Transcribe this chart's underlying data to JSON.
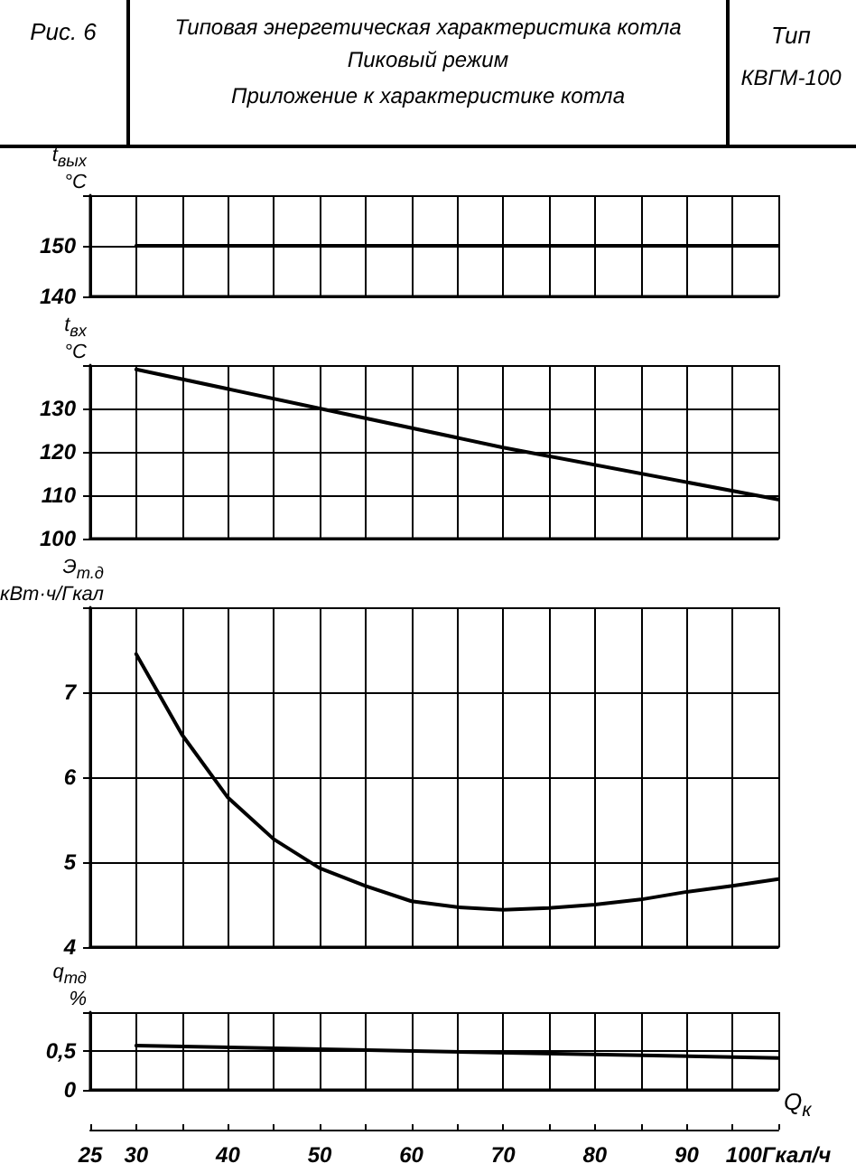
{
  "chart_data": [
    {
      "type": "line",
      "title": "Типовая энергетическая характеристика котла",
      "subtitle": "Пиковый режим",
      "annotations": [
        "Рис. 6",
        "Приложение к характеристике котла",
        "Тип",
        "КВГМ-100"
      ],
      "ylabel": "t$_{вых}$ °C",
      "x": [
        30,
        100
      ],
      "series": [
        {
          "color": "#000000",
          "values": [
            150,
            150
          ]
        }
      ],
      "xlim": [
        25,
        100
      ],
      "xticks": [
        25,
        30,
        {
          "value": 35,
          "label": null
        },
        40,
        {
          "value": 45,
          "label": null
        },
        50,
        {
          "value": 55,
          "label": null
        },
        60,
        {
          "value": 65,
          "label": null
        },
        70,
        {
          "value": 75,
          "label": null
        },
        80,
        {
          "value": 85,
          "label": null
        },
        90,
        {
          "value": 95,
          "label": null
        },
        100
      ],
      "ylim": [
        140,
        160
      ],
      "yticks": [
        140,
        150,
        {
          "value": 160,
          "label": null
        }
      ],
      "tick_labels": "y",
      "grid": true,
      "marker": "none",
      "line_style": "solid"
    },
    {
      "type": "line",
      "ylabel": "t$_{вх}$ °C",
      "x": [
        30,
        50,
        70,
        100
      ],
      "series": [
        {
          "color": "#000000",
          "values": [
            139,
            130,
            121,
            109
          ]
        }
      ],
      "xlim": [
        25,
        100
      ],
      "xticks": [
        25,
        30,
        {
          "value": 35,
          "label": null
        },
        40,
        {
          "value": 45,
          "label": null
        },
        50,
        {
          "value": 55,
          "label": null
        },
        60,
        {
          "value": 65,
          "label": null
        },
        70,
        {
          "value": 75,
          "label": null
        },
        80,
        {
          "value": 85,
          "label": null
        },
        90,
        {
          "value": 95,
          "label": null
        },
        100
      ],
      "ylim": [
        100,
        140
      ],
      "yticks": [
        100,
        110,
        120,
        130,
        {
          "value": 140,
          "label": null
        }
      ],
      "tick_labels": "y",
      "grid": true,
      "marker": "none",
      "line_style": "solid"
    },
    {
      "type": "line",
      "ylabel": "Э$_{т.д}$ кВт·ч/Гкал",
      "x": [
        30,
        35,
        40,
        45,
        50,
        55,
        60,
        65,
        70,
        75,
        80,
        85,
        90,
        95,
        100
      ],
      "series": [
        {
          "color": "#000000",
          "values": [
            7.45,
            6.5,
            5.76,
            5.27,
            4.93,
            4.72,
            4.54,
            4.47,
            4.44,
            4.46,
            4.5,
            4.56,
            4.65,
            4.72,
            4.8
          ]
        }
      ],
      "xlim": [
        25,
        100
      ],
      "xticks": [
        25,
        30,
        {
          "value": 35,
          "label": null
        },
        40,
        {
          "value": 45,
          "label": null
        },
        50,
        {
          "value": 55,
          "label": null
        },
        60,
        {
          "value": 65,
          "label": null
        },
        70,
        {
          "value": 75,
          "label": null
        },
        80,
        {
          "value": 85,
          "label": null
        },
        90,
        {
          "value": 95,
          "label": null
        },
        100
      ],
      "ylim": [
        4,
        8
      ],
      "yticks": [
        4,
        5,
        6,
        7,
        {
          "value": 8,
          "label": null
        }
      ],
      "tick_labels": "y",
      "grid": true,
      "marker": "none",
      "line_style": "solid"
    },
    {
      "type": "line",
      "ylabel": "q$_{тд}$ %",
      "xlabel": "Q$_{к}$",
      "x": [
        30,
        100
      ],
      "series": [
        {
          "color": "#000000",
          "values": [
            0.57,
            0.41
          ]
        }
      ],
      "xlim": [
        25,
        100
      ],
      "xticks": [
        25,
        30,
        {
          "value": 35,
          "label": null
        },
        40,
        {
          "value": 45,
          "label": null
        },
        50,
        {
          "value": 55,
          "label": null
        },
        60,
        {
          "value": 65,
          "label": null
        },
        70,
        {
          "value": 75,
          "label": null
        },
        80,
        {
          "value": 85,
          "label": null
        },
        90,
        {
          "value": 95,
          "label": null
        },
        {
          "value": 100,
          "label": "100Гкал/ч"
        }
      ],
      "ylim": [
        0,
        1
      ],
      "yticks": [
        0,
        {
          "value": 0.5,
          "label": "0,5"
        },
        {
          "value": 1,
          "label": null
        }
      ],
      "grid": true,
      "marker": "none",
      "line_style": "solid"
    }
  ]
}
